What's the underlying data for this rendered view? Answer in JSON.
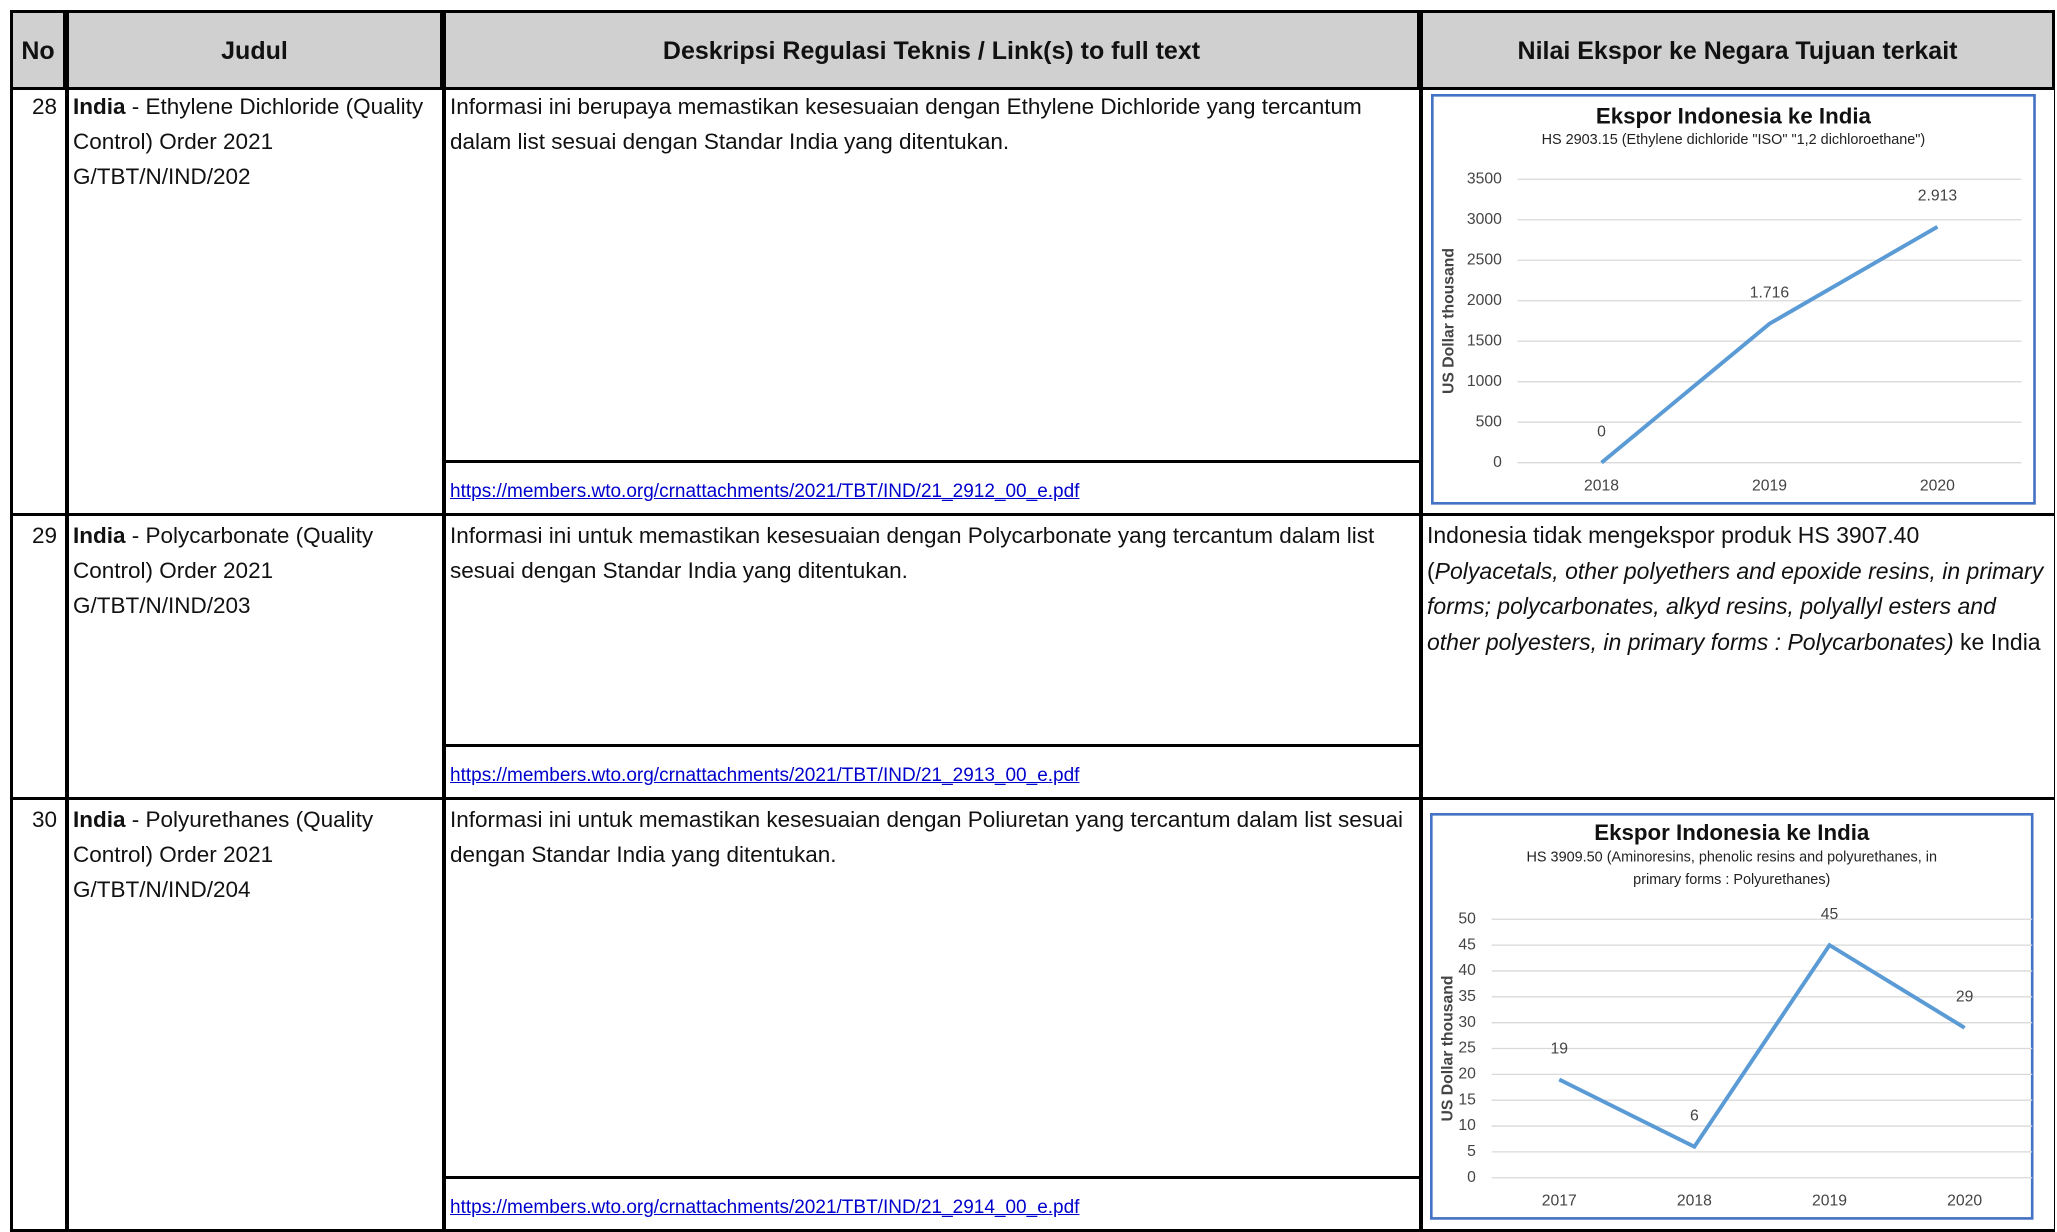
{
  "header": [
    "No",
    "Judul",
    "Deskripsi Regulasi Teknis / Link(s) to full text",
    "Nilai Ekspor ke Negara Tujuan terkait"
  ],
  "rows": [
    {
      "no": "28",
      "country": "India",
      "title": "- Ethylene Dichloride (Quality Control) Order  2021",
      "code": "G/TBT/N/IND/202",
      "description": "Informasi ini berupaya memastikan kesesuaian dengan Ethylene Dichloride yang tercantum dalam list sesuai dengan Standar India yang ditentukan.",
      "link": "https://members.wto.org/crnattachments/2021/TBT/IND/21_2912_00_e.pdf",
      "chart": {
        "type": "line",
        "title": "Ekspor Indonesia ke India",
        "subtitle": "HS 2903.15 (Ethylene dichloride \"ISO\" \"1,2 dichloroethane\")",
        "y_label": "US Dollar thousand",
        "categories": [
          "2018",
          "2019",
          "2020"
        ],
        "values": [
          0,
          1716,
          2913
        ],
        "value_labels": [
          "0",
          "1.716",
          "2.913"
        ],
        "color": "#5b9bd5",
        "ylim": [
          0,
          3500
        ],
        "yticks": [
          0,
          500,
          1000,
          1500,
          2000,
          2500,
          3000,
          3500
        ],
        "grid": true
      }
    },
    {
      "no": "29",
      "country": "India",
      "title": "- Polycarbonate (Quality Control) Order  2021",
      "code": "G/TBT/N/IND/203",
      "description": "Informasi ini  untuk memastikan kesesuaian dengan Polycarbonate yang tercantum dalam list sesuai dengan Standar India yang ditentukan.",
      "link": "https://members.wto.org/crnattachments/2021/TBT/IND/21_2913_00_e.pdf",
      "export_text": [
        "Indonesia tidak mengekspor produk HS 3907.40 (",
        "Polyacetals, other polyethers and epoxide resins, in primary forms; polycarbonates, alkyd resins, polyallyl esters and other polyesters, in primary forms : Polycarbonates)",
        " ke India"
      ]
    },
    {
      "no": "30",
      "country": "India",
      "title": "- Polyurethanes (Quality Control) Order  2021",
      "code": "G/TBT/N/IND/204",
      "description": "Informasi ini untuk memastikan kesesuaian dengan Poliuretan yang tercantum dalam list sesuai dengan Standar India yang ditentukan.",
      "link": "https://members.wto.org/crnattachments/2021/TBT/IND/21_2914_00_e.pdf",
      "chart": {
        "type": "line",
        "title": "Ekspor Indonesia ke India",
        "subtitle": "HS 3909.50 (Aminoresins, phenolic resins and polyurethanes, in primary forms : Polyurethanes)",
        "y_label": "US Dollar thousand",
        "categories": [
          "2017",
          "2018",
          "2019",
          "2020"
        ],
        "values": [
          19,
          6,
          45,
          29
        ],
        "color": "#5b9bd5",
        "ylim": [
          0,
          50
        ],
        "yticks": [
          0,
          5,
          10,
          15,
          20,
          25,
          30,
          35,
          40,
          45,
          50
        ],
        "grid": true
      }
    }
  ]
}
